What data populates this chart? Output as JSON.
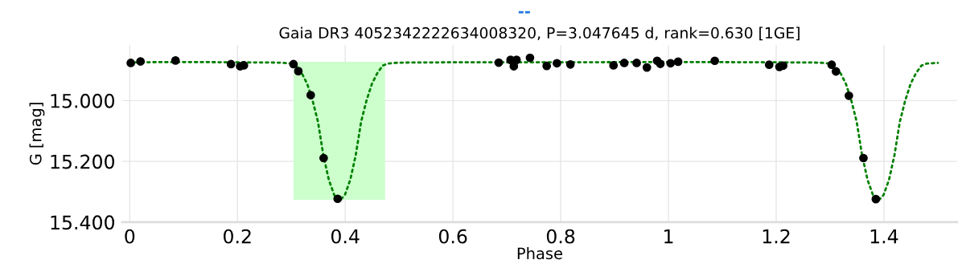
{
  "chart_data": {
    "type": "scatter",
    "title": "Gaia DR3 4052342222634008320, P=3.047645 d, rank=0.630 [1GE]",
    "xlabel": "Phase",
    "ylabel": "G [mag]",
    "annotations": [
      "--"
    ],
    "xlim": [
      -0.014,
      1.536
    ],
    "ylim": [
      15.4,
      14.817
    ],
    "xticks": [
      0,
      0.2,
      0.4,
      0.6,
      0.8,
      1,
      1.2,
      1.4
    ],
    "yticks": [
      {
        "value": 15.0,
        "label": "15.000"
      },
      {
        "value": 15.2,
        "label": "15.200"
      },
      {
        "value": 15.4,
        "label": "15.400"
      }
    ],
    "grid": true,
    "legend": false,
    "series": [
      {
        "type": "area",
        "color": "#ccffcc",
        "x": [
          0.304,
          0.304,
          0.474,
          0.474
        ],
        "values": [
          15.326,
          14.872,
          14.872,
          15.326
        ]
      },
      {
        "type": "line",
        "color": "#008000",
        "line_style": "dotted",
        "marker": "none",
        "x": [
          0,
          0.1,
          0.2,
          0.2795,
          0.2995,
          0.3095,
          0.3195,
          0.3295,
          0.3395,
          0.3495,
          0.3595,
          0.3695,
          0.3795,
          0.3895,
          0.3995,
          0.4095,
          0.4195,
          0.4295,
          0.4395,
          0.4495,
          0.4595,
          0.4695,
          0.4795,
          0.4995,
          0.6,
          0.8,
          1.0,
          1.2,
          1.2795,
          1.2995,
          1.3095,
          1.3195,
          1.3295,
          1.3395,
          1.3495,
          1.3595,
          1.3695,
          1.3795,
          1.3895,
          1.3995,
          1.4095,
          1.4195,
          1.4295,
          1.4395,
          1.4495,
          1.4595,
          1.4695,
          1.4795,
          1.4995,
          1.5
        ],
        "values": [
          14.874,
          14.873,
          14.874,
          14.875,
          14.878,
          14.885,
          14.91,
          14.945,
          15.0,
          15.07,
          15.18,
          15.26,
          15.31,
          15.33,
          15.31,
          15.26,
          15.18,
          15.07,
          15.0,
          14.945,
          14.91,
          14.885,
          14.878,
          14.875,
          14.874,
          14.874,
          14.873,
          14.874,
          14.875,
          14.878,
          14.885,
          14.91,
          14.945,
          15.0,
          15.07,
          15.18,
          15.26,
          15.31,
          15.33,
          15.31,
          15.26,
          15.18,
          15.07,
          15.0,
          14.945,
          14.91,
          14.885,
          14.878,
          14.876,
          14.876
        ]
      },
      {
        "color": "#000000",
        "marker": "circle",
        "x": [
          0.002,
          0.02,
          0.085,
          0.188,
          0.205,
          0.212,
          0.304,
          0.313,
          0.336,
          0.36,
          0.386,
          0.685,
          0.707,
          0.713,
          0.718,
          0.743,
          0.774,
          0.793,
          0.818,
          0.898,
          0.918,
          0.941,
          0.96,
          0.979,
          0.985,
          1.004,
          1.018,
          1.086,
          1.187,
          1.206,
          1.213,
          1.303,
          1.311,
          1.335,
          1.362,
          1.385
        ],
        "values": [
          14.876,
          14.871,
          14.868,
          14.88,
          14.887,
          14.884,
          14.88,
          14.903,
          14.982,
          15.189,
          15.323,
          14.875,
          14.866,
          14.887,
          14.866,
          14.859,
          14.886,
          14.877,
          14.881,
          14.884,
          14.876,
          14.876,
          14.891,
          14.869,
          14.879,
          14.877,
          14.872,
          14.869,
          14.882,
          14.889,
          14.885,
          14.882,
          14.904,
          14.984,
          15.189,
          15.324
        ]
      }
    ]
  }
}
